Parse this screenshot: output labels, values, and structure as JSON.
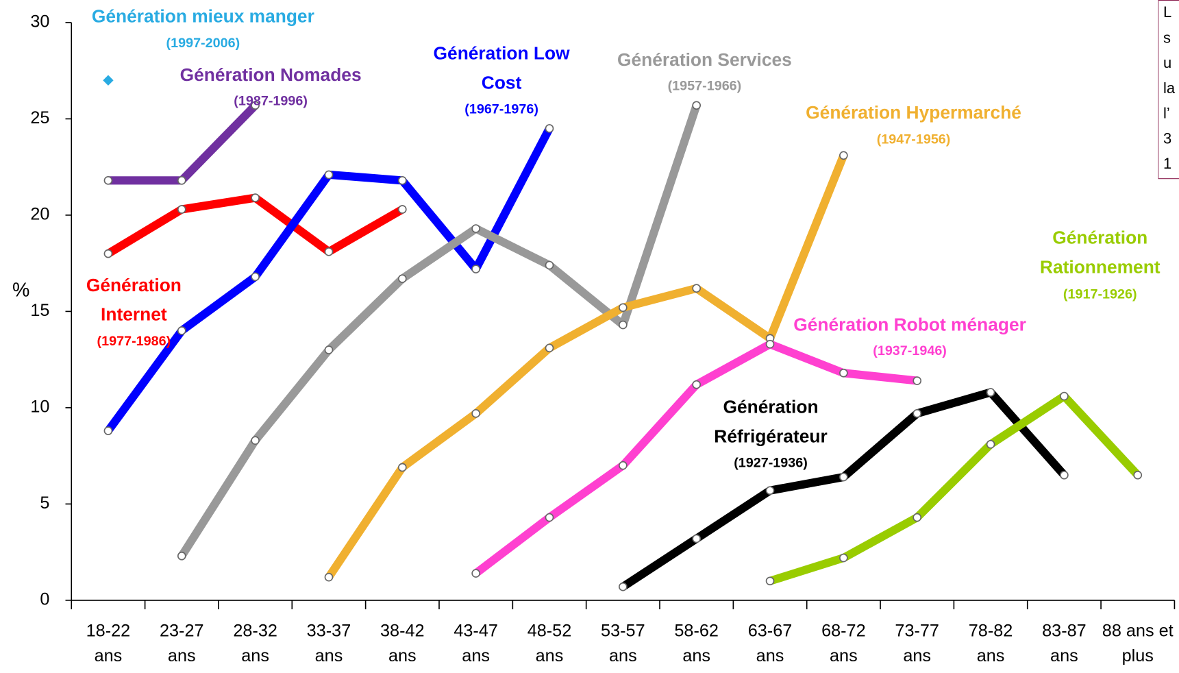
{
  "chart_data": {
    "type": "line",
    "y_label": "%",
    "categories": [
      "18-22 ans",
      "23-27 ans",
      "28-32 ans",
      "33-37 ans",
      "38-42 ans",
      "43-47 ans",
      "48-52 ans",
      "53-57 ans",
      "58-62 ans",
      "63-67 ans",
      "68-72 ans",
      "73-77 ans",
      "78-82 ans",
      "83-87 ans",
      "88 ans et plus"
    ],
    "ylim": [
      0,
      30
    ],
    "yticks": [
      0,
      5,
      10,
      15,
      20,
      25,
      30
    ],
    "grid": false,
    "series": [
      {
        "name": "Génération mieux manger",
        "period": "(1997-2006)",
        "color": "#29abe2",
        "values": [
          27,
          null,
          null,
          null,
          null,
          null,
          null,
          null,
          null,
          null,
          null,
          null,
          null,
          null,
          null
        ]
      },
      {
        "name": "Génération Nomades",
        "period": "(1987-1996)",
        "color": "#7030a0",
        "values": [
          21.8,
          21.8,
          25.7,
          null,
          null,
          null,
          null,
          null,
          null,
          null,
          null,
          null,
          null,
          null,
          null
        ]
      },
      {
        "name": "Génération Internet",
        "period": "(1977-1986)",
        "color": "#ff0000",
        "values": [
          18,
          20.3,
          20.9,
          18.1,
          20.3,
          null,
          null,
          null,
          null,
          null,
          null,
          null,
          null,
          null,
          null
        ]
      },
      {
        "name": "Génération Low Cost",
        "period": "(1967-1976)",
        "color": "#0000ff",
        "values": [
          8.8,
          14,
          16.8,
          22.1,
          21.8,
          17.2,
          24.5,
          null,
          null,
          null,
          null,
          null,
          null,
          null,
          null
        ]
      },
      {
        "name": "Génération Services",
        "period": "(1957-1966)",
        "color": "#999999",
        "values": [
          null,
          2.3,
          8.3,
          13,
          16.7,
          19.3,
          17.4,
          14.3,
          25.7,
          null,
          null,
          null,
          null,
          null,
          null
        ]
      },
      {
        "name": "Génération  Hypermarché",
        "period": "(1947-1956)",
        "color": "#f0b030",
        "values": [
          null,
          null,
          null,
          1.2,
          6.9,
          9.7,
          13.1,
          15.2,
          16.2,
          13.6,
          23.1,
          null,
          null,
          null,
          null
        ]
      },
      {
        "name": "Génération Robot ménager",
        "period": "(1937-1946)",
        "color": "#ff40d0",
        "values": [
          null,
          null,
          null,
          null,
          null,
          1.4,
          4.3,
          7,
          11.2,
          13.3,
          11.8,
          11.4,
          null,
          null,
          null
        ]
      },
      {
        "name": "Génération Réfrigérateur",
        "period": "(1927-1936)",
        "color": "#000000",
        "values": [
          null,
          null,
          null,
          null,
          null,
          null,
          null,
          0.7,
          3.2,
          5.7,
          6.4,
          9.7,
          10.8,
          6.5,
          null
        ]
      },
      {
        "name": "Génération Rationnement",
        "period": "(1917-1926)",
        "color": "#99cc00",
        "values": [
          null,
          null,
          null,
          null,
          null,
          null,
          null,
          null,
          null,
          1,
          2.2,
          4.3,
          8.1,
          10.6,
          6.5
        ]
      }
    ],
    "note_lines": [
      "L",
      "s",
      "u",
      "la",
      "l’",
      "3",
      "1"
    ]
  }
}
